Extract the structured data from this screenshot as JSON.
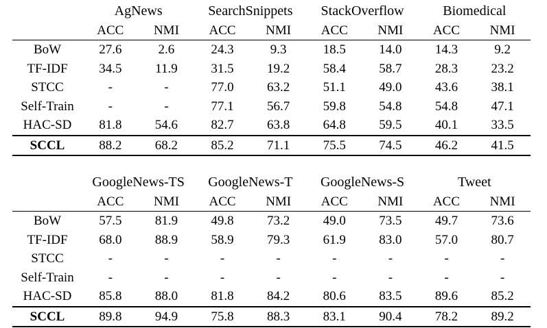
{
  "tables": [
    {
      "datasets": [
        "AgNews",
        "SearchSnippets",
        "StackOverflow",
        "Biomedical"
      ],
      "metrics": [
        "ACC",
        "NMI",
        "ACC",
        "NMI",
        "ACC",
        "NMI",
        "ACC",
        "NMI"
      ],
      "rows": [
        {
          "method": "BoW",
          "values": [
            "27.6",
            "2.6",
            "24.3",
            "9.3",
            "18.5",
            "14.0",
            "14.3",
            "9.2"
          ],
          "bold": []
        },
        {
          "method": "TF-IDF",
          "values": [
            "34.5",
            "11.9",
            "31.5",
            "19.2",
            "58.4",
            "58.7",
            "28.3",
            "23.2"
          ],
          "bold": []
        },
        {
          "method": "STCC",
          "values": [
            "-",
            "-",
            "77.0",
            "63.2",
            "51.1",
            "49.0",
            "43.6",
            "38.1"
          ],
          "bold": []
        },
        {
          "method": "Self-Train",
          "values": [
            "-",
            "-",
            "77.1",
            "56.7",
            "59.8",
            "54.8",
            "54.8",
            "47.1"
          ],
          "bold": [
            6,
            7
          ]
        },
        {
          "method": "HAC-SD",
          "values": [
            "81.8",
            "54.6",
            "82.7",
            "63.8",
            "64.8",
            "59.5",
            "40.1",
            "33.5"
          ],
          "bold": []
        },
        {
          "method": "SCCL",
          "values": [
            "88.2",
            "68.2",
            "85.2",
            "71.1",
            "75.5",
            "74.5",
            "46.2",
            "41.5"
          ],
          "bold": [
            0,
            1,
            2,
            3,
            4,
            5
          ]
        }
      ]
    },
    {
      "datasets": [
        "GoogleNews-TS",
        "GoogleNews-T",
        "GoogleNews-S",
        "Tweet"
      ],
      "metrics": [
        "ACC",
        "NMI",
        "ACC",
        "NMI",
        "ACC",
        "NMI",
        "ACC",
        "NMI"
      ],
      "rows": [
        {
          "method": "BoW",
          "values": [
            "57.5",
            "81.9",
            "49.8",
            "73.2",
            "49.0",
            "73.5",
            "49.7",
            "73.6"
          ],
          "bold": []
        },
        {
          "method": "TF-IDF",
          "values": [
            "68.0",
            "88.9",
            "58.9",
            "79.3",
            "61.9",
            "83.0",
            "57.0",
            "80.7"
          ],
          "bold": []
        },
        {
          "method": "STCC",
          "values": [
            "-",
            "-",
            "-",
            "-",
            "-",
            "-",
            "-",
            "-"
          ],
          "bold": []
        },
        {
          "method": "Self-Train",
          "values": [
            "-",
            "-",
            "-",
            "-",
            "-",
            "-",
            "-",
            "-"
          ],
          "bold": []
        },
        {
          "method": "HAC-SD",
          "values": [
            "85.8",
            "88.0",
            "81.8",
            "84.2",
            "80.6",
            "83.5",
            "89.6",
            "85.2"
          ],
          "bold": [
            2,
            6
          ]
        },
        {
          "method": "SCCL",
          "values": [
            "89.8",
            "94.9",
            "75.8",
            "88.3",
            "83.1",
            "90.4",
            "78.2",
            "89.2"
          ],
          "bold": [
            0,
            1,
            3,
            4,
            5,
            7
          ]
        }
      ]
    }
  ]
}
